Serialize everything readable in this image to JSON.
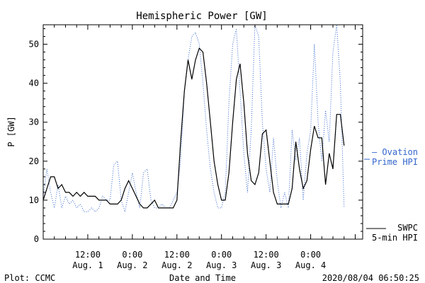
{
  "chart_data": {
    "type": "line",
    "title": "Hemispheric Power [GW]",
    "xlabel": "Date and Time",
    "ylabel": "P [GW]",
    "ylim": [
      0,
      55
    ],
    "xlim": [
      0,
      86
    ],
    "yticks": [
      0,
      10,
      20,
      30,
      40,
      50
    ],
    "xticks": [
      {
        "x": 12,
        "time": "12:00",
        "date": "Aug. 1"
      },
      {
        "x": 24,
        "time": "0:00",
        "date": "Aug. 2"
      },
      {
        "x": 36,
        "time": "12:00",
        "date": "Aug. 2"
      },
      {
        "x": 48,
        "time": "0:00",
        "date": "Aug. 3"
      },
      {
        "x": 60,
        "time": "12:00",
        "date": "Aug. 3"
      },
      {
        "x": 72,
        "time": "0:00",
        "date": "Aug. 4"
      }
    ],
    "grid": false,
    "legend_placement": "right",
    "series": [
      {
        "name": "SWPC 5-min HPI",
        "label_lines": [
          "SWPC",
          "5-min HPI"
        ],
        "style": "solid",
        "color": "#000000",
        "points": [
          [
            0,
            10
          ],
          [
            1,
            13
          ],
          [
            2,
            16
          ],
          [
            3,
            16
          ],
          [
            4,
            13
          ],
          [
            5,
            14
          ],
          [
            6,
            12
          ],
          [
            7,
            12
          ],
          [
            8,
            11
          ],
          [
            9,
            12
          ],
          [
            10,
            11
          ],
          [
            11,
            12
          ],
          [
            12,
            11
          ],
          [
            13,
            11
          ],
          [
            14,
            11
          ],
          [
            15,
            10
          ],
          [
            16,
            10
          ],
          [
            17,
            10
          ],
          [
            18,
            9
          ],
          [
            19,
            9
          ],
          [
            20,
            9
          ],
          [
            21,
            10
          ],
          [
            22,
            13
          ],
          [
            23,
            15
          ],
          [
            24,
            13
          ],
          [
            25,
            11
          ],
          [
            26,
            9
          ],
          [
            27,
            8
          ],
          [
            28,
            8
          ],
          [
            29,
            9
          ],
          [
            30,
            10
          ],
          [
            31,
            8
          ],
          [
            32,
            8
          ],
          [
            33,
            8
          ],
          [
            34,
            8
          ],
          [
            35,
            8
          ],
          [
            36,
            10
          ],
          [
            37,
            25
          ],
          [
            38,
            38
          ],
          [
            39,
            46
          ],
          [
            40,
            41
          ],
          [
            41,
            46
          ],
          [
            42,
            49
          ],
          [
            43,
            48
          ],
          [
            44,
            40
          ],
          [
            45,
            30
          ],
          [
            46,
            20
          ],
          [
            47,
            14
          ],
          [
            48,
            10
          ],
          [
            49,
            10
          ],
          [
            50,
            17
          ],
          [
            51,
            30
          ],
          [
            52,
            41
          ],
          [
            53,
            45
          ],
          [
            54,
            35
          ],
          [
            55,
            22
          ],
          [
            56,
            15
          ],
          [
            57,
            14
          ],
          [
            58,
            17
          ],
          [
            59,
            27
          ],
          [
            60,
            28
          ],
          [
            61,
            20
          ],
          [
            62,
            12
          ],
          [
            63,
            9
          ],
          [
            64,
            9
          ],
          [
            65,
            9
          ],
          [
            66,
            9
          ],
          [
            67,
            13
          ],
          [
            68,
            25
          ],
          [
            69,
            18
          ],
          [
            70,
            13
          ],
          [
            71,
            15
          ],
          [
            72,
            23
          ],
          [
            73,
            29
          ],
          [
            74,
            26
          ],
          [
            75,
            26
          ],
          [
            76,
            14
          ],
          [
            77,
            22
          ],
          [
            78,
            18
          ],
          [
            79,
            32
          ],
          [
            80,
            32
          ],
          [
            81,
            24
          ]
        ]
      },
      {
        "name": "Ovation Prime HPI",
        "label_lines": [
          "— Ovation",
          "Prime HPI"
        ],
        "style": "dotted",
        "color": "#3366cc",
        "points": [
          [
            0,
            11
          ],
          [
            1,
            18
          ],
          [
            2,
            12
          ],
          [
            3,
            8
          ],
          [
            4,
            14
          ],
          [
            5,
            8
          ],
          [
            6,
            11
          ],
          [
            7,
            9
          ],
          [
            8,
            10
          ],
          [
            9,
            8
          ],
          [
            10,
            9
          ],
          [
            11,
            7
          ],
          [
            12,
            7
          ],
          [
            13,
            8
          ],
          [
            14,
            7
          ],
          [
            15,
            8
          ],
          [
            16,
            11
          ],
          [
            17,
            10
          ],
          [
            18,
            10
          ],
          [
            19,
            19
          ],
          [
            20,
            20
          ],
          [
            21,
            10
          ],
          [
            22,
            7
          ],
          [
            23,
            12
          ],
          [
            24,
            17
          ],
          [
            25,
            12
          ],
          [
            26,
            8
          ],
          [
            27,
            17
          ],
          [
            28,
            18
          ],
          [
            29,
            10
          ],
          [
            30,
            8
          ],
          [
            31,
            8
          ],
          [
            32,
            9
          ],
          [
            33,
            8
          ],
          [
            34,
            8
          ],
          [
            35,
            10
          ],
          [
            36,
            12
          ],
          [
            37,
            20
          ],
          [
            38,
            38
          ],
          [
            39,
            46
          ],
          [
            40,
            52
          ],
          [
            41,
            53
          ],
          [
            42,
            50
          ],
          [
            43,
            40
          ],
          [
            44,
            28
          ],
          [
            45,
            18
          ],
          [
            46,
            12
          ],
          [
            47,
            8
          ],
          [
            48,
            8
          ],
          [
            49,
            12
          ],
          [
            50,
            35
          ],
          [
            51,
            50
          ],
          [
            52,
            54
          ],
          [
            53,
            38
          ],
          [
            54,
            22
          ],
          [
            55,
            12
          ],
          [
            56,
            28
          ],
          [
            57,
            55
          ],
          [
            58,
            52
          ],
          [
            59,
            30
          ],
          [
            60,
            18
          ],
          [
            61,
            12
          ],
          [
            62,
            26
          ],
          [
            63,
            15
          ],
          [
            64,
            8
          ],
          [
            65,
            12
          ],
          [
            66,
            8
          ],
          [
            67,
            28
          ],
          [
            68,
            20
          ],
          [
            69,
            26
          ],
          [
            70,
            10
          ],
          [
            71,
            22
          ],
          [
            72,
            28
          ],
          [
            73,
            50
          ],
          [
            74,
            30
          ],
          [
            75,
            20
          ],
          [
            76,
            33
          ],
          [
            77,
            25
          ],
          [
            78,
            48
          ],
          [
            79,
            55
          ],
          [
            80,
            40
          ],
          [
            81,
            8
          ]
        ]
      }
    ],
    "footer_left": "Plot: CCMC",
    "footer_right": "2020/08/04 06:50:25"
  }
}
